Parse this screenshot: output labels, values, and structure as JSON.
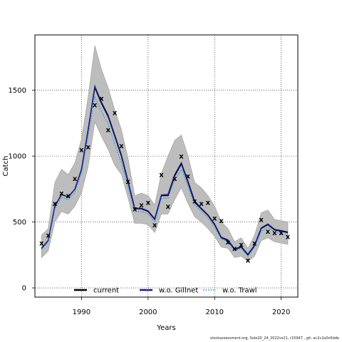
{
  "chart_data": {
    "type": "line",
    "xlabel": "Years",
    "ylabel": "Catch",
    "xlim": [
      1983,
      2022.5
    ],
    "ylim": [
      -70,
      1920
    ],
    "xticks": [
      1990,
      2000,
      2010,
      2020
    ],
    "yticks": [
      0,
      500,
      1000,
      1500
    ],
    "grid": "dotted",
    "x": [
      1984,
      1985,
      1986,
      1987,
      1988,
      1989,
      1990,
      1991,
      1992,
      1993,
      1994,
      1995,
      1996,
      1997,
      1998,
      1999,
      2000,
      2001,
      2002,
      2003,
      2004,
      2005,
      2006,
      2007,
      2008,
      2009,
      2010,
      2011,
      2012,
      2013,
      2014,
      2015,
      2016,
      2017,
      2018,
      2019,
      2020,
      2021
    ],
    "series": [
      {
        "name": "current",
        "color": "#000000",
        "values": [
          300,
          360,
          620,
          710,
          690,
          750,
          900,
          1200,
          1520,
          1400,
          1300,
          1150,
          1000,
          800,
          600,
          600,
          580,
          520,
          700,
          700,
          850,
          940,
          800,
          650,
          600,
          550,
          480,
          380,
          360,
          290,
          310,
          250,
          320,
          450,
          480,
          440,
          430,
          420
        ]
      },
      {
        "name": "w.o. Gillnet",
        "color": "#1a1a8c",
        "values": [
          300,
          360,
          620,
          710,
          690,
          750,
          900,
          1200,
          1530,
          1410,
          1310,
          1160,
          1010,
          810,
          605,
          605,
          585,
          525,
          705,
          710,
          860,
          950,
          810,
          660,
          605,
          555,
          485,
          385,
          365,
          295,
          315,
          255,
          325,
          455,
          485,
          445,
          435,
          425
        ]
      },
      {
        "name": "w.o. Trawl",
        "color": "#1f9ad6",
        "values": [
          290,
          350,
          600,
          690,
          670,
          730,
          870,
          1150,
          1450,
          1340,
          1240,
          1090,
          950,
          760,
          580,
          580,
          560,
          500,
          680,
          680,
          820,
          900,
          770,
          630,
          580,
          530,
          460,
          370,
          350,
          280,
          300,
          240,
          310,
          430,
          460,
          425,
          415,
          405
        ]
      }
    ],
    "ci_upper": [
      400,
      450,
      800,
      900,
      860,
      950,
      1130,
      1450,
      1840,
      1660,
      1520,
      1350,
      1200,
      980,
      700,
      720,
      700,
      630,
      870,
      1000,
      1120,
      1160,
      1000,
      800,
      760,
      700,
      620,
      500,
      450,
      350,
      380,
      300,
      400,
      570,
      590,
      520,
      510,
      500
    ],
    "ci_lower": [
      230,
      280,
      500,
      580,
      560,
      620,
      720,
      920,
      1260,
      1150,
      1050,
      930,
      860,
      680,
      490,
      490,
      480,
      420,
      560,
      560,
      670,
      760,
      640,
      540,
      500,
      450,
      390,
      310,
      300,
      230,
      240,
      200,
      240,
      360,
      380,
      350,
      340,
      330
    ],
    "observed_label": "x",
    "observed": [
      340,
      400,
      640,
      720,
      700,
      830,
      1050,
      1070,
      1390,
      1440,
      1200,
      1330,
      1080,
      810,
      600,
      630,
      650,
      480,
      860,
      620,
      830,
      1000,
      850,
      660,
      640,
      650,
      530,
      510,
      350,
      300,
      330,
      210,
      340,
      520,
      430,
      420,
      420,
      390
    ]
  },
  "footer": "stockassessment.org, Sole20_24_2022vs21, r15947 , git: ec2c2a0c6dde"
}
